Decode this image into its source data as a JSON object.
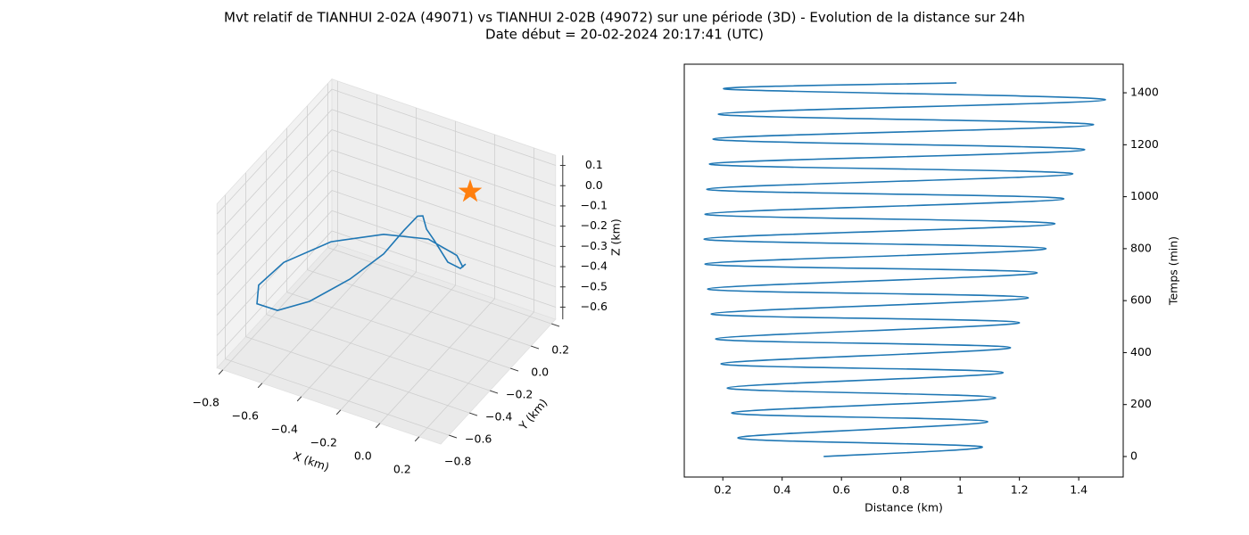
{
  "title": "Mvt relatif de TIANHUI 2-02A (49071) vs TIANHUI 2-02B (49072) sur une période (3D) - Evolution de la distance sur 24h",
  "subtitle": "Date début = 20-02-2024 20:17:41 (UTC)",
  "chart_data": [
    {
      "type": "line3d",
      "color": "#1f77b4",
      "xlabel": "X (km)",
      "ylabel": "Y (km)",
      "zlabel": "Z (km)",
      "x": [
        -0.025,
        -0.045,
        -0.094,
        -0.145,
        -0.176,
        -0.19,
        -0.21,
        -0.262,
        -0.341,
        -0.471,
        -0.626,
        -0.749,
        -0.828,
        -0.822,
        -0.725,
        -0.543,
        -0.341,
        -0.169,
        -0.059,
        -0.035
      ],
      "y": [
        0.004,
        -0.009,
        -0.038,
        -0.07,
        -0.089,
        -0.098,
        -0.111,
        -0.143,
        -0.191,
        -0.272,
        -0.368,
        -0.445,
        -0.494,
        -0.489,
        -0.43,
        -0.317,
        -0.191,
        -0.085,
        -0.017,
        -0.002
      ],
      "z": [
        -0.368,
        -0.389,
        -0.358,
        -0.252,
        -0.194,
        -0.128,
        -0.129,
        -0.198,
        -0.315,
        -0.438,
        -0.546,
        -0.589,
        -0.555,
        -0.464,
        -0.352,
        -0.252,
        -0.218,
        -0.243,
        -0.325,
        -0.385
      ],
      "marker_point": {
        "x": 0,
        "y": 0,
        "z": 0,
        "color": "#ff7f0e"
      },
      "xlim": [
        -0.83,
        0.31
      ],
      "ylim": [
        -0.88,
        0.24
      ],
      "zlim": [
        -0.66,
        0.15
      ],
      "xticks": [
        {
          "value": -0.8,
          "label": "−0.8"
        },
        {
          "value": -0.6,
          "label": "−0.6"
        },
        {
          "value": -0.4,
          "label": "−0.4"
        },
        {
          "value": -0.2,
          "label": "−0.2"
        },
        {
          "value": 0,
          "label": "0.0"
        },
        0.2
      ],
      "yticks": [
        {
          "value": -0.8,
          "label": "−0.8"
        },
        {
          "value": -0.6,
          "label": "−0.6"
        },
        {
          "value": -0.4,
          "label": "−0.4"
        },
        {
          "value": -0.2,
          "label": "−0.2"
        },
        {
          "value": 0,
          "label": "0.0"
        },
        0.2
      ],
      "zticks": [
        0.1,
        {
          "value": 0,
          "label": "0.0"
        },
        {
          "value": -0.1,
          "label": "−0.1"
        },
        {
          "value": -0.2,
          "label": "−0.2"
        },
        {
          "value": -0.3,
          "label": "−0.3"
        },
        {
          "value": -0.4,
          "label": "−0.4"
        },
        {
          "value": -0.5,
          "label": "−0.5"
        },
        {
          "value": -0.6,
          "label": "−0.6"
        }
      ],
      "grid": true
    },
    {
      "type": "line",
      "color": "#1f77b4",
      "xlabel": "Distance (km)",
      "ylabel": "Temps (min)",
      "y_axis_side": "right",
      "x": [
        0.54,
        1.072,
        0.251,
        1.093,
        0.23,
        1.12,
        0.215,
        1.145,
        0.194,
        1.17,
        0.176,
        1.2,
        0.161,
        1.23,
        0.149,
        1.26,
        0.14,
        1.29,
        0.137,
        1.32,
        0.14,
        1.35,
        0.146,
        1.38,
        0.155,
        1.42,
        0.167,
        1.45,
        0.185,
        1.49,
        0.209,
        0.988
      ],
      "y": [
        0,
        38,
        72,
        134,
        168,
        226,
        264,
        323,
        357,
        419,
        453,
        515,
        549,
        611,
        645,
        707,
        741,
        800,
        837,
        896,
        933,
        992,
        1029,
        1088,
        1126,
        1181,
        1222,
        1277,
        1318,
        1373,
        1414,
        1438
      ],
      "xlim": [
        0.07,
        1.55
      ],
      "ylim": [
        -79,
        1510
      ],
      "xticks": [
        0.2,
        0.4,
        0.6,
        0.8,
        1,
        1.2,
        1.4
      ],
      "yticks": [
        0,
        200,
        400,
        600,
        800,
        1000,
        1200,
        1400
      ],
      "grid": false
    }
  ]
}
